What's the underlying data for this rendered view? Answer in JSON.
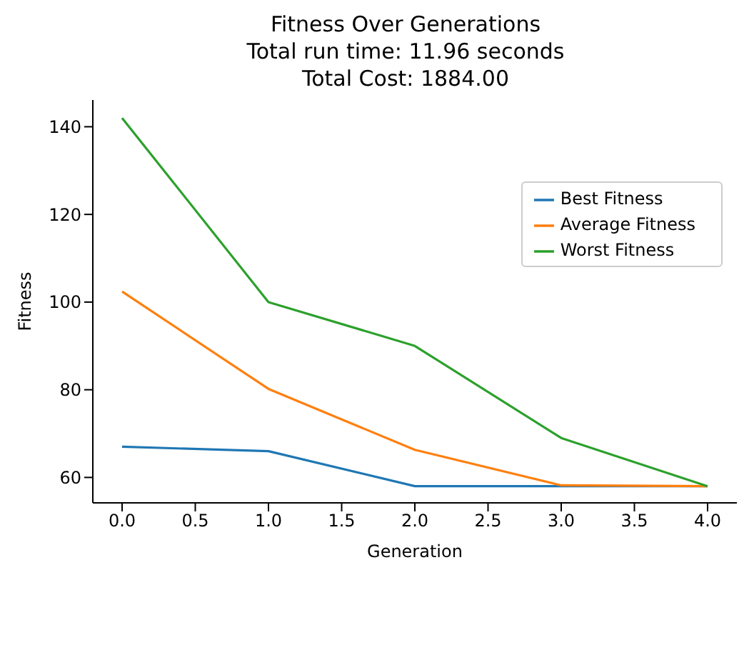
{
  "chart_data": {
    "type": "line",
    "title": "Fitness Over Generations\nTotal run time: 11.96 seconds\nTotal Cost: 1884.00",
    "xlabel": "Generation",
    "ylabel": "Fitness",
    "x": [
      0,
      1,
      2,
      3,
      4
    ],
    "series": [
      {
        "name": "Best Fitness",
        "color": "#1f77b4",
        "values": [
          67,
          66,
          58,
          58,
          58
        ]
      },
      {
        "name": "Average Fitness",
        "color": "#ff7f0e",
        "values": [
          102.4,
          80.2,
          66.3,
          58.2,
          58
        ]
      },
      {
        "name": "Worst Fitness",
        "color": "#2ca02c",
        "values": [
          142,
          100,
          90,
          69,
          58
        ]
      }
    ],
    "xlim": [
      -0.2,
      4.2
    ],
    "xticks": [
      {
        "value": 0,
        "label": "0.0"
      },
      {
        "value": 0.5,
        "label": "0.5"
      },
      {
        "value": 1,
        "label": "1.0"
      },
      {
        "value": 1.5,
        "label": "1.5"
      },
      {
        "value": 2,
        "label": "2.0"
      },
      {
        "value": 2.5,
        "label": "2.5"
      },
      {
        "value": 3,
        "label": "3.0"
      },
      {
        "value": 3.5,
        "label": "3.5"
      },
      {
        "value": 4,
        "label": "4.0"
      }
    ],
    "ylim": [
      54.2,
      146.1
    ],
    "yticks": [
      60,
      80,
      100,
      120,
      140
    ],
    "grid": false,
    "legend": "top right",
    "marker": "none",
    "line_style": "solid"
  }
}
